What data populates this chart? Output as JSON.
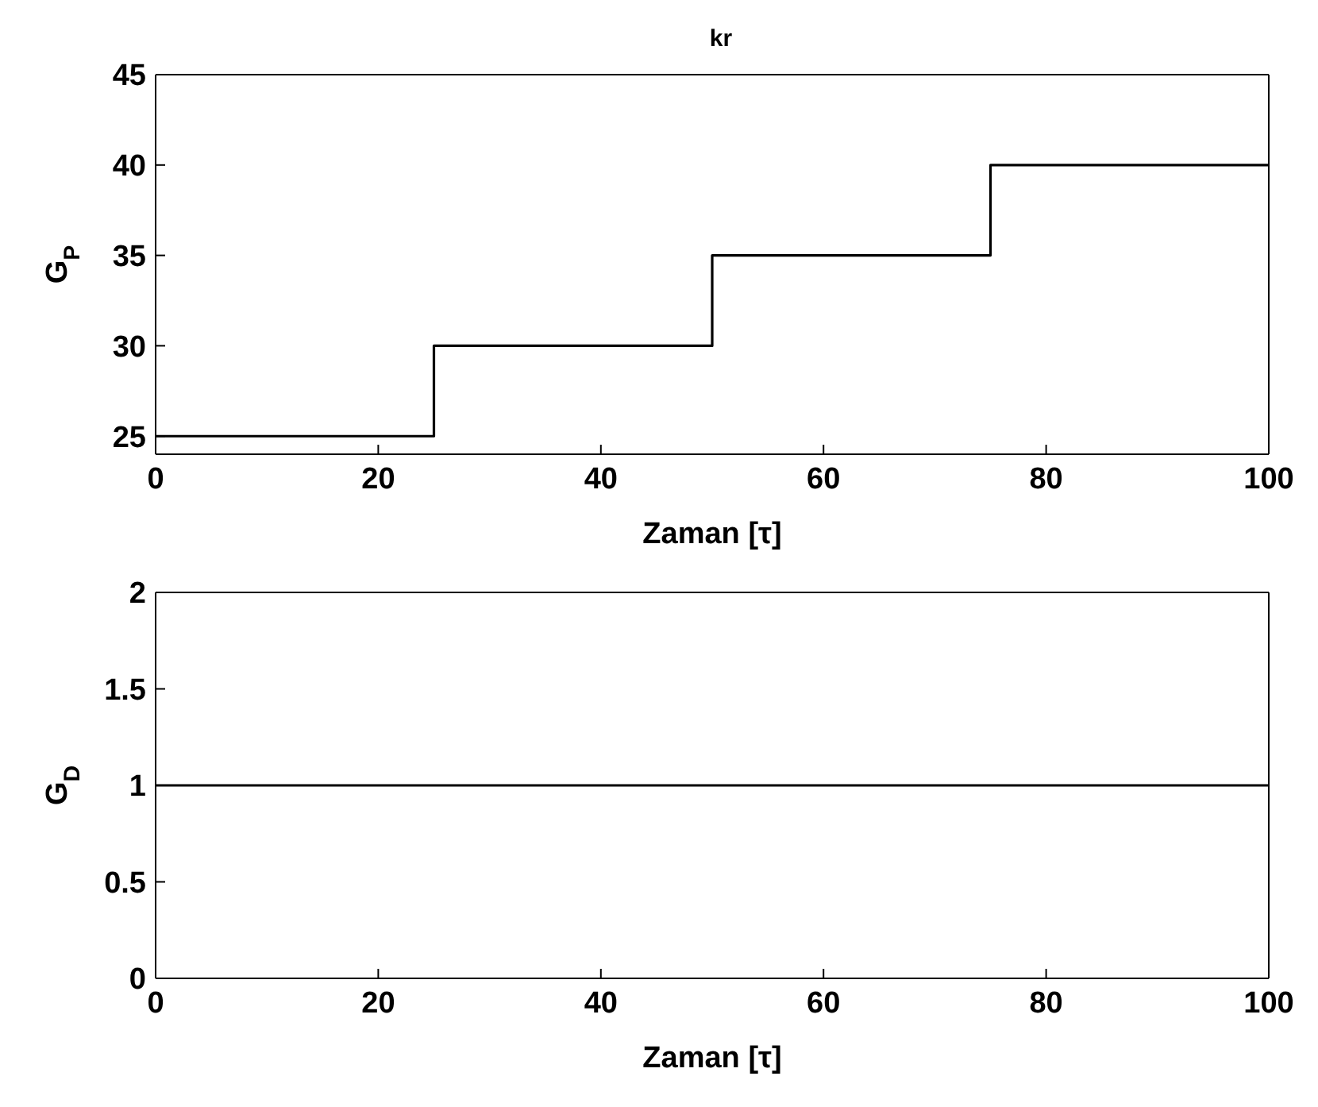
{
  "chart_data": [
    {
      "type": "step",
      "title": "kr",
      "xlabel": "Zaman [τ]",
      "ylabel": "G$_{P}$",
      "x": [
        0,
        25,
        50,
        75,
        100
      ],
      "series": [
        {
          "color": "#000000",
          "values": [
            25,
            30,
            35,
            40,
            40
          ]
        }
      ],
      "xlim": [
        0,
        100
      ],
      "xticks": [
        0,
        20,
        40,
        60,
        80,
        100
      ],
      "ylim": [
        24,
        45
      ],
      "yticks": [
        25,
        30,
        35,
        40,
        45
      ],
      "grid": false,
      "legend": false
    },
    {
      "type": "step",
      "xlabel": "Zaman [τ]",
      "ylabel": "G$_{D}$",
      "x": [
        0,
        100
      ],
      "series": [
        {
          "color": "#000000",
          "values": [
            1,
            1
          ]
        }
      ],
      "xlim": [
        0,
        100
      ],
      "xticks": [
        0,
        20,
        40,
        60,
        80,
        100
      ],
      "ylim": [
        0,
        2
      ],
      "yticks": [
        0,
        0.5,
        1,
        1.5,
        2
      ],
      "grid": false,
      "legend": false
    }
  ]
}
